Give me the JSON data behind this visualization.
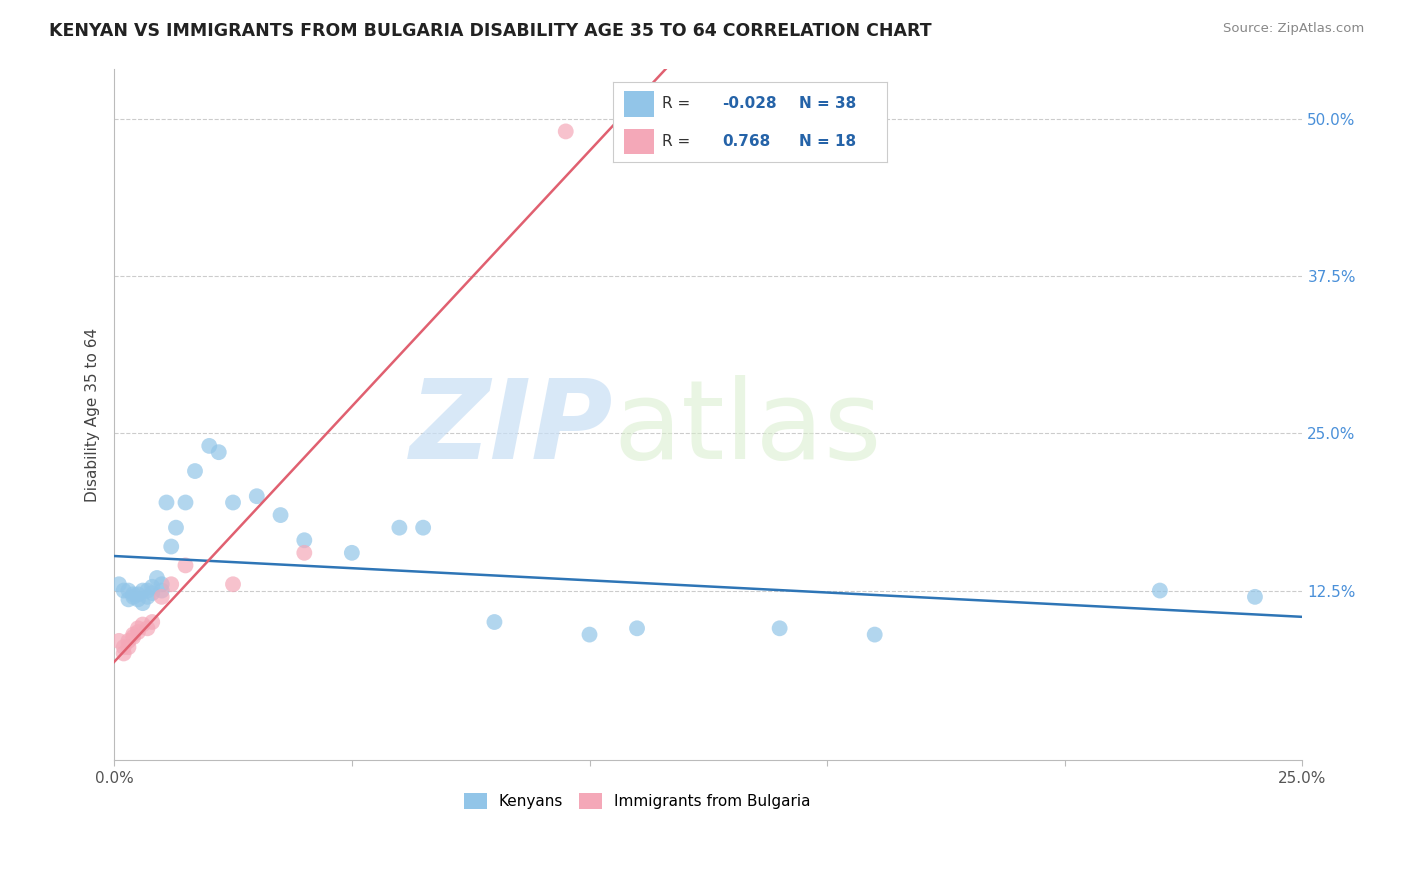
{
  "title": "KENYAN VS IMMIGRANTS FROM BULGARIA DISABILITY AGE 35 TO 64 CORRELATION CHART",
  "source": "Source: ZipAtlas.com",
  "ylabel": "Disability Age 35 to 64",
  "watermark_zip": "ZIP",
  "watermark_atlas": "atlas",
  "xlim": [
    0.0,
    0.25
  ],
  "ylim": [
    -0.01,
    0.54
  ],
  "blue_color": "#92C5E8",
  "pink_color": "#F4A8B8",
  "blue_line_color": "#2E75B6",
  "pink_line_color": "#E06070",
  "legend_R_color": "#2563a8",
  "grid_color": "#cccccc",
  "bg_color": "#ffffff",
  "blue_x": [
    0.001,
    0.002,
    0.003,
    0.003,
    0.004,
    0.004,
    0.005,
    0.005,
    0.006,
    0.006,
    0.007,
    0.007,
    0.008,
    0.008,
    0.009,
    0.01,
    0.01,
    0.011,
    0.012,
    0.013,
    0.015,
    0.017,
    0.02,
    0.022,
    0.025,
    0.03,
    0.035,
    0.04,
    0.05,
    0.06,
    0.065,
    0.08,
    0.1,
    0.11,
    0.14,
    0.16,
    0.22,
    0.24
  ],
  "blue_y": [
    0.13,
    0.125,
    0.118,
    0.125,
    0.12,
    0.122,
    0.118,
    0.122,
    0.115,
    0.125,
    0.12,
    0.125,
    0.123,
    0.128,
    0.135,
    0.125,
    0.13,
    0.195,
    0.16,
    0.175,
    0.195,
    0.22,
    0.24,
    0.235,
    0.195,
    0.2,
    0.185,
    0.165,
    0.155,
    0.175,
    0.175,
    0.1,
    0.09,
    0.095,
    0.095,
    0.09,
    0.125,
    0.12
  ],
  "pink_x": [
    0.001,
    0.002,
    0.002,
    0.003,
    0.003,
    0.004,
    0.004,
    0.005,
    0.005,
    0.006,
    0.007,
    0.008,
    0.01,
    0.012,
    0.015,
    0.025,
    0.04,
    0.095
  ],
  "pink_y": [
    0.085,
    0.075,
    0.08,
    0.08,
    0.085,
    0.088,
    0.09,
    0.092,
    0.095,
    0.098,
    0.095,
    0.1,
    0.12,
    0.13,
    0.145,
    0.13,
    0.155,
    0.49
  ]
}
